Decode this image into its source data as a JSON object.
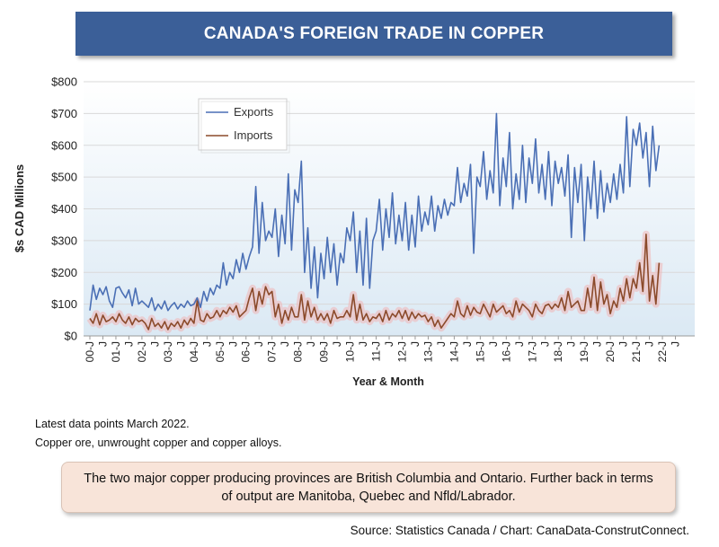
{
  "title": "CANADA'S FOREIGN TRADE IN COPPER",
  "notes": {
    "line1": "Latest data points March 2022.",
    "line2": "Copper ore, unwrought copper and copper alloys."
  },
  "callout": "The two major copper producing provinces are British Columbia and Ontario. Further back in terms of output are Manitoba, Quebec and Nfld/Labrador.",
  "source": "Source: Statistics Canada / Chart: CanaData-ConstrutConnect.",
  "colors": {
    "exports": "#4a6fb5",
    "imports": "#8b4a2a",
    "banner": "#3b5f98",
    "callout": "#f8e4d9"
  },
  "chart_data": {
    "type": "line",
    "ylabel": "$s CAD Millions",
    "xlabel": "Year & Month",
    "ylim": [
      0,
      800
    ],
    "y_ticks": [
      "$0",
      "$100",
      "$200",
      "$300",
      "$400",
      "$500",
      "$600",
      "$700",
      "$800"
    ],
    "x_tick_labels": [
      "00-J",
      "J",
      "01-J",
      "J",
      "02-J",
      "J",
      "03-J",
      "J",
      "04-J",
      "J",
      "05-J",
      "J",
      "06-J",
      "J",
      "07-J",
      "J",
      "08-J",
      "J",
      "09-J",
      "J",
      "10-J",
      "J",
      "11-J",
      "J",
      "12-J",
      "J",
      "13-J",
      "J",
      "14-J",
      "J",
      "15-J",
      "J",
      "16-J",
      "J",
      "17-J",
      "J",
      "18-J",
      "J",
      "19-J",
      "J",
      "20-J",
      "J",
      "21-J",
      "J",
      "22-J",
      "J"
    ],
    "x_start": "2000-01",
    "x_end": "2022-03",
    "grid": "horizontal",
    "legend_position": "top-left",
    "series": [
      {
        "name": "Exports",
        "yearly": [
          [
            80,
            160,
            115,
            150,
            130,
            155,
            110,
            90
          ],
          [
            150,
            155,
            135,
            120,
            145,
            95,
            150,
            100
          ],
          [
            110,
            100,
            90,
            120,
            80,
            100,
            85,
            110
          ],
          [
            80,
            95,
            105,
            85,
            100,
            90,
            110,
            95
          ],
          [
            100,
            120,
            90,
            140,
            110,
            150,
            130,
            160
          ],
          [
            150,
            230,
            160,
            200,
            180,
            240,
            200,
            260
          ],
          [
            210,
            250,
            280,
            470,
            260,
            420,
            300,
            330
          ],
          [
            310,
            400,
            250,
            380,
            290,
            510,
            270,
            460
          ],
          [
            420,
            550,
            200,
            340,
            150,
            280,
            120,
            260
          ],
          [
            180,
            310,
            200,
            290,
            160,
            260,
            230,
            340
          ],
          [
            300,
            390,
            200,
            330,
            160,
            370,
            150,
            300
          ],
          [
            330,
            430,
            270,
            400,
            310,
            450,
            290,
            380
          ],
          [
            300,
            420,
            270,
            380,
            280,
            440,
            330,
            390
          ],
          [
            350,
            440,
            330,
            410,
            370,
            430,
            380,
            420
          ],
          [
            410,
            530,
            420,
            480,
            440,
            540,
            260,
            500
          ],
          [
            470,
            580,
            430,
            520,
            450,
            700,
            410,
            560
          ],
          [
            470,
            640,
            400,
            510,
            430,
            600,
            420,
            560
          ],
          [
            480,
            620,
            450,
            540,
            430,
            580,
            410,
            550
          ],
          [
            480,
            530,
            440,
            570,
            310,
            530,
            420,
            540
          ],
          [
            300,
            500,
            400,
            550,
            370,
            520,
            390,
            480
          ],
          [
            420,
            510,
            430,
            540,
            450,
            690,
            470,
            650
          ],
          [
            600,
            670,
            560,
            640,
            470,
            660,
            520,
            600
          ]
        ]
      },
      {
        "name": "Imports",
        "yearly": [
          [
            55,
            40,
            70,
            35,
            65,
            45,
            50,
            60
          ],
          [
            45,
            70,
            50,
            40,
            60,
            35,
            55,
            45
          ],
          [
            50,
            40,
            20,
            55,
            30,
            40,
            25,
            45
          ],
          [
            20,
            40,
            30,
            45,
            25,
            50,
            35,
            55
          ],
          [
            40,
            110,
            50,
            45,
            70,
            55,
            60,
            80
          ],
          [
            60,
            80,
            70,
            90,
            75,
            95,
            60,
            70
          ],
          [
            80,
            120,
            150,
            80,
            140,
            100,
            155,
            130
          ],
          [
            140,
            60,
            100,
            40,
            80,
            50,
            90,
            60
          ],
          [
            60,
            130,
            50,
            110,
            60,
            90,
            50,
            70
          ],
          [
            50,
            70,
            40,
            80,
            55,
            60,
            60,
            80
          ],
          [
            60,
            130,
            50,
            100,
            50,
            70,
            45,
            60
          ],
          [
            55,
            70,
            45,
            80,
            50,
            70,
            60,
            80
          ],
          [
            55,
            80,
            50,
            75,
            55,
            70,
            60,
            65
          ],
          [
            45,
            60,
            30,
            50,
            25,
            40,
            55,
            70
          ],
          [
            60,
            110,
            70,
            60,
            95,
            65,
            90,
            75
          ],
          [
            70,
            100,
            80,
            60,
            100,
            75,
            85,
            95
          ],
          [
            70,
            80,
            60,
            110,
            75,
            100,
            90,
            80
          ],
          [
            60,
            100,
            80,
            70,
            95,
            100,
            85,
            100
          ],
          [
            90,
            120,
            80,
            140,
            90,
            100,
            110,
            80
          ],
          [
            80,
            150,
            90,
            185,
            80,
            170,
            100,
            130
          ],
          [
            70,
            110,
            90,
            150,
            110,
            180,
            120,
            180
          ],
          [
            150,
            230,
            140,
            320,
            110,
            190,
            100,
            230
          ]
        ]
      }
    ]
  }
}
